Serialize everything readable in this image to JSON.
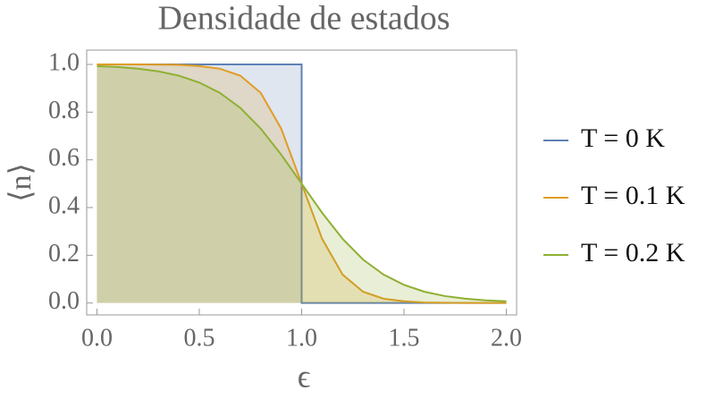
{
  "chart_data": {
    "type": "line",
    "title": "Densidade de estados",
    "x_label": "ϵ",
    "y_label": "⟨n⟩",
    "series": [
      {
        "name": "T = 0 K",
        "color": "#5e81b5",
        "x": [
          0,
          1,
          1,
          2
        ],
        "values": [
          1,
          1,
          0,
          0
        ]
      },
      {
        "name": "T = 0.1 K",
        "color": "#e19c24",
        "x": [
          0,
          0.1,
          0.2,
          0.3,
          0.4,
          0.5,
          0.6,
          0.7,
          0.8,
          0.9,
          1.0,
          1.1,
          1.2,
          1.3,
          1.4,
          1.5,
          1.6,
          1.7,
          1.8,
          1.9,
          2.0
        ],
        "values": [
          1.0,
          1.0,
          1.0,
          0.999,
          0.998,
          0.993,
          0.982,
          0.953,
          0.881,
          0.731,
          0.5,
          0.269,
          0.119,
          0.047,
          0.018,
          0.007,
          0.002,
          0.001,
          0.0,
          0.0,
          0.0
        ]
      },
      {
        "name": "T = 0.2 K",
        "color": "#8fb032",
        "x": [
          0,
          0.1,
          0.2,
          0.3,
          0.4,
          0.5,
          0.6,
          0.7,
          0.8,
          0.9,
          1.0,
          1.1,
          1.2,
          1.3,
          1.4,
          1.5,
          1.6,
          1.7,
          1.8,
          1.9,
          2.0
        ],
        "values": [
          0.993,
          0.989,
          0.982,
          0.971,
          0.953,
          0.924,
          0.881,
          0.818,
          0.731,
          0.622,
          0.5,
          0.378,
          0.269,
          0.182,
          0.119,
          0.076,
          0.047,
          0.029,
          0.018,
          0.011,
          0.007
        ]
      }
    ],
    "xlim": [
      -0.05,
      2.05
    ],
    "ylim": [
      -0.05,
      1.06
    ],
    "xticks": [
      {
        "value": 0,
        "label": "0.0"
      },
      0.5,
      {
        "value": 1,
        "label": "1.0"
      },
      1.5,
      {
        "value": 2,
        "label": "2.0"
      }
    ],
    "yticks": [
      {
        "value": 0,
        "label": "0.0"
      },
      0.2,
      0.4,
      0.6,
      0.8,
      {
        "value": 1,
        "label": "1.0"
      }
    ],
    "filled": true,
    "legend": "right"
  }
}
